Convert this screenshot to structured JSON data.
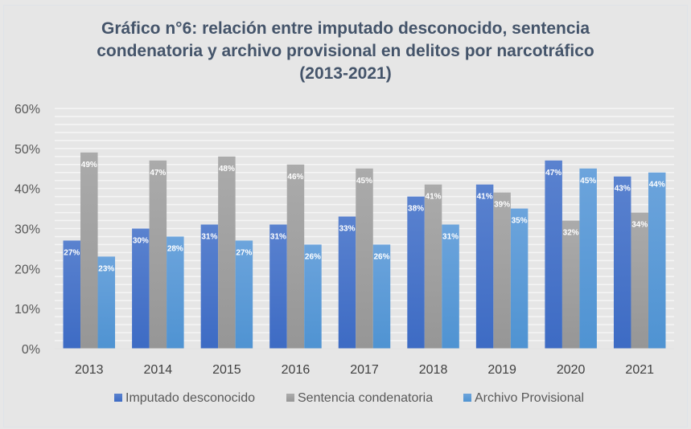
{
  "chart_data": {
    "type": "bar",
    "title": [
      "Gráfico n°6: relación entre imputado desconocido, sentencia",
      "condenatoria y archivo provisional en delitos por narcotráfico",
      "(2013-2021)"
    ],
    "xlabel": "",
    "ylabel": "",
    "ylim": [
      0,
      0.6
    ],
    "yticks": [
      0,
      0.1,
      0.2,
      0.3,
      0.4,
      0.5,
      0.6
    ],
    "ytick_labels": [
      "0%",
      "10%",
      "20%",
      "30%",
      "40%",
      "50%",
      "60%"
    ],
    "grid": true,
    "legend_position": "bottom",
    "categories": [
      "2013",
      "2014",
      "2015",
      "2016",
      "2017",
      "2018",
      "2019",
      "2020",
      "2021"
    ],
    "series": [
      {
        "name": "Imputado desconocido",
        "color": "#4472c4",
        "values": [
          0.27,
          0.3,
          0.31,
          0.31,
          0.33,
          0.38,
          0.41,
          0.47,
          0.43
        ],
        "labels": [
          "27%",
          "30%",
          "31%",
          "31%",
          "33%",
          "38%",
          "41%",
          "47%",
          "43%"
        ]
      },
      {
        "name": "Sentencia condenatoria",
        "color": "#a5a5a5",
        "values": [
          0.49,
          0.47,
          0.48,
          0.46,
          0.45,
          0.41,
          0.39,
          0.32,
          0.34
        ],
        "labels": [
          "49%",
          "47%",
          "48%",
          "46%",
          "45%",
          "41%",
          "39%",
          "32%",
          "34%"
        ]
      },
      {
        "name": "Archivo Provisional",
        "color": "#5b9bd5",
        "values": [
          0.23,
          0.28,
          0.27,
          0.26,
          0.26,
          0.31,
          0.35,
          0.45,
          0.44
        ],
        "labels": [
          "23%",
          "28%",
          "27%",
          "26%",
          "26%",
          "31%",
          "35%",
          "45%",
          "44%"
        ]
      }
    ]
  }
}
